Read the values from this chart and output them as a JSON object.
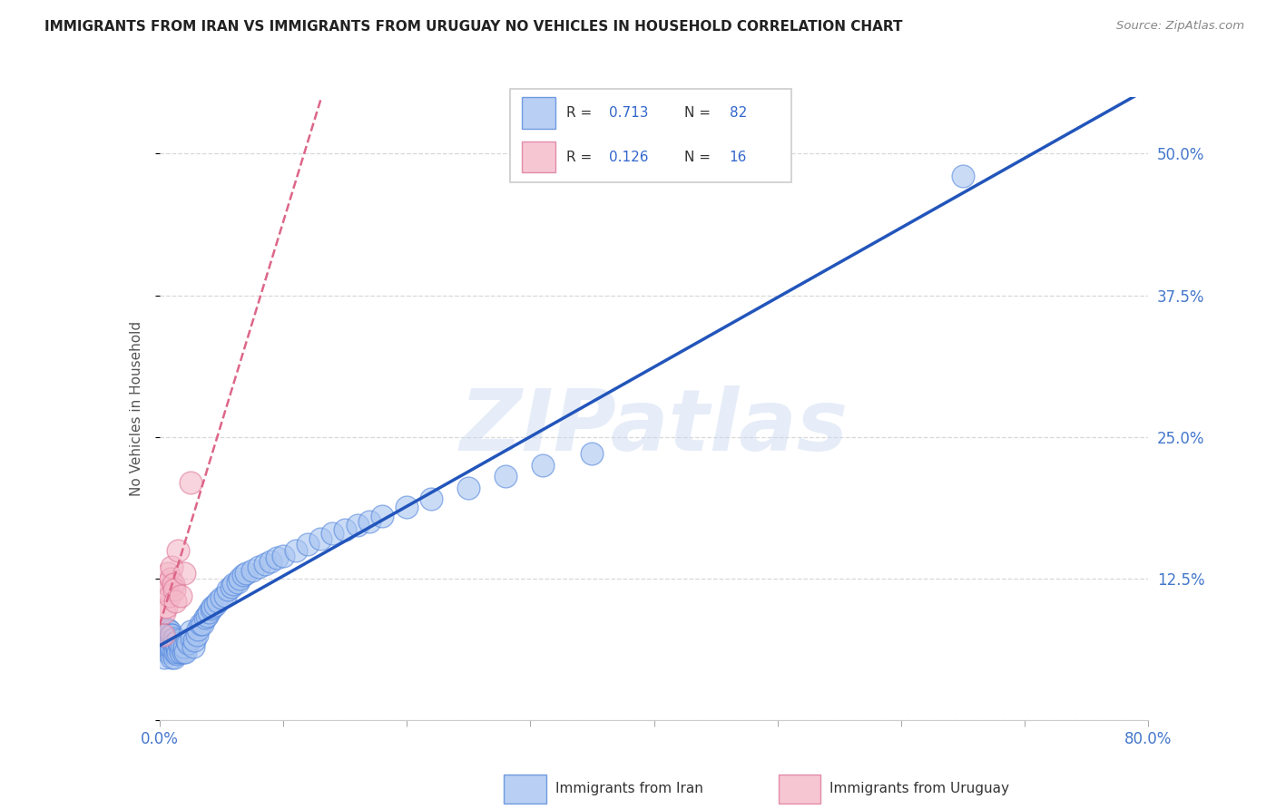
{
  "title": "IMMIGRANTS FROM IRAN VS IMMIGRANTS FROM URUGUAY NO VEHICLES IN HOUSEHOLD CORRELATION CHART",
  "source": "Source: ZipAtlas.com",
  "ylabel_label": "No Vehicles in Household",
  "x_min": 0.0,
  "x_max": 0.8,
  "y_min": 0.0,
  "y_max": 0.55,
  "x_ticks": [
    0.0,
    0.1,
    0.2,
    0.3,
    0.4,
    0.5,
    0.6,
    0.7,
    0.8
  ],
  "y_ticks": [
    0.0,
    0.125,
    0.25,
    0.375,
    0.5
  ],
  "grid_color": "#d8d8d8",
  "background_color": "#ffffff",
  "watermark": "ZIPatlas",
  "iran_color": "#a8c4f0",
  "iran_edge_color": "#5588dd",
  "uruguay_color": "#f4b8c8",
  "uruguay_edge_color": "#dd7799",
  "iran_R": 0.713,
  "iran_N": 82,
  "uruguay_R": 0.126,
  "uruguay_N": 16,
  "iran_line_color": "#2255bb",
  "uruguay_line_color": "#dd6688",
  "legend_iran_label": "Immigrants from Iran",
  "legend_uruguay_label": "Immigrants from Uruguay",
  "iran_scatter_x": [
    0.003,
    0.004,
    0.005,
    0.005,
    0.006,
    0.006,
    0.007,
    0.007,
    0.007,
    0.008,
    0.008,
    0.008,
    0.009,
    0.009,
    0.009,
    0.01,
    0.01,
    0.01,
    0.01,
    0.011,
    0.011,
    0.012,
    0.012,
    0.013,
    0.013,
    0.014,
    0.014,
    0.015,
    0.015,
    0.016,
    0.017,
    0.018,
    0.019,
    0.02,
    0.021,
    0.022,
    0.023,
    0.025,
    0.026,
    0.027,
    0.028,
    0.03,
    0.031,
    0.033,
    0.035,
    0.037,
    0.038,
    0.04,
    0.042,
    0.043,
    0.045,
    0.047,
    0.05,
    0.053,
    0.055,
    0.058,
    0.06,
    0.063,
    0.065,
    0.068,
    0.07,
    0.075,
    0.08,
    0.085,
    0.09,
    0.095,
    0.1,
    0.11,
    0.12,
    0.13,
    0.14,
    0.15,
    0.16,
    0.17,
    0.18,
    0.2,
    0.22,
    0.25,
    0.28,
    0.31,
    0.35,
    0.65
  ],
  "iran_scatter_y": [
    0.065,
    0.055,
    0.075,
    0.08,
    0.068,
    0.075,
    0.06,
    0.07,
    0.08,
    0.065,
    0.072,
    0.078,
    0.06,
    0.07,
    0.075,
    0.055,
    0.063,
    0.07,
    0.075,
    0.06,
    0.068,
    0.055,
    0.072,
    0.06,
    0.068,
    0.058,
    0.065,
    0.06,
    0.07,
    0.065,
    0.06,
    0.065,
    0.06,
    0.065,
    0.06,
    0.07,
    0.068,
    0.078,
    0.072,
    0.065,
    0.07,
    0.075,
    0.08,
    0.085,
    0.085,
    0.09,
    0.092,
    0.095,
    0.098,
    0.1,
    0.102,
    0.105,
    0.108,
    0.11,
    0.115,
    0.118,
    0.12,
    0.122,
    0.125,
    0.128,
    0.13,
    0.132,
    0.135,
    0.138,
    0.14,
    0.143,
    0.145,
    0.15,
    0.155,
    0.16,
    0.165,
    0.168,
    0.172,
    0.175,
    0.18,
    0.188,
    0.195,
    0.205,
    0.215,
    0.225,
    0.235,
    0.48
  ],
  "uruguay_scatter_x": [
    0.003,
    0.004,
    0.005,
    0.005,
    0.006,
    0.007,
    0.008,
    0.009,
    0.01,
    0.011,
    0.012,
    0.013,
    0.015,
    0.017,
    0.02,
    0.025
  ],
  "uruguay_scatter_y": [
    0.075,
    0.095,
    0.1,
    0.115,
    0.12,
    0.13,
    0.11,
    0.125,
    0.135,
    0.12,
    0.115,
    0.105,
    0.15,
    0.11,
    0.13,
    0.21
  ]
}
